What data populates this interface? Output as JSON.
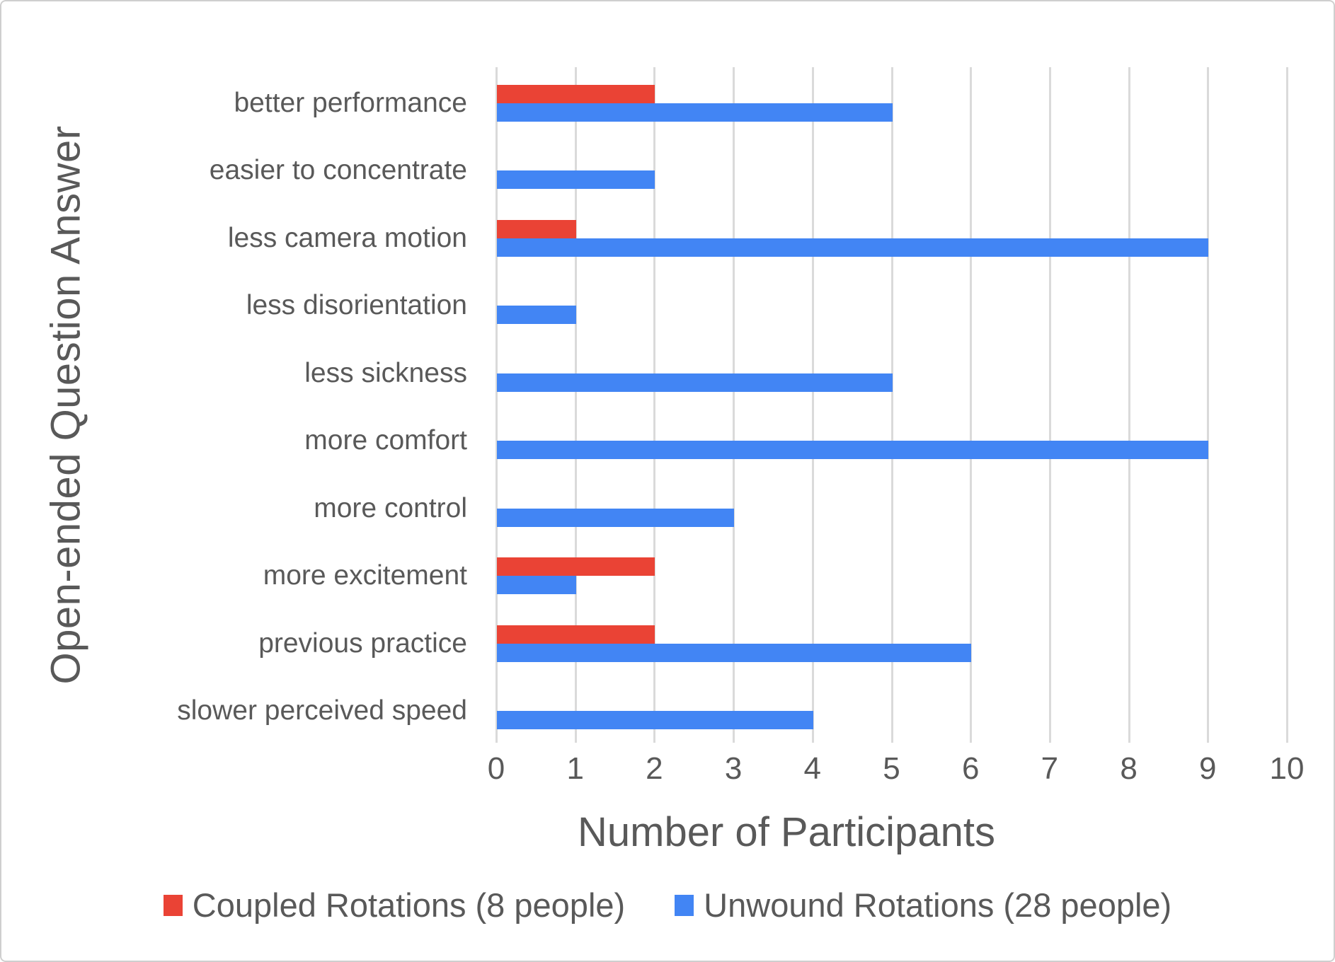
{
  "colors": {
    "coupled_red": "#EA4335",
    "unwound_blue": "#4285F4",
    "gridline": "#DADADA",
    "text": "#595959",
    "frame_border": "#CFCFCF"
  },
  "chart_data": {
    "type": "bar",
    "orientation": "horizontal",
    "title": "",
    "xlabel": "Number of Participants",
    "ylabel": "Open-ended Question Answer",
    "xlim": [
      0,
      10
    ],
    "x_ticks": [
      0,
      1,
      2,
      3,
      4,
      5,
      6,
      7,
      8,
      9,
      10
    ],
    "grid": true,
    "legend_position": "bottom",
    "categories": [
      "better performance",
      "easier to concentrate",
      "less camera motion",
      "less disorientation",
      "less sickness",
      "more comfort",
      "more control",
      "more excitement",
      "previous practice",
      "slower perceived speed"
    ],
    "series": [
      {
        "name": "Coupled Rotations (8 people)",
        "color": "#EA4335",
        "values": [
          2,
          0,
          1,
          0,
          0,
          0,
          0,
          2,
          2,
          0
        ]
      },
      {
        "name": "Unwound Rotations (28 people)",
        "color": "#4285F4",
        "values": [
          5,
          2,
          9,
          1,
          5,
          9,
          3,
          1,
          6,
          4
        ]
      }
    ]
  }
}
